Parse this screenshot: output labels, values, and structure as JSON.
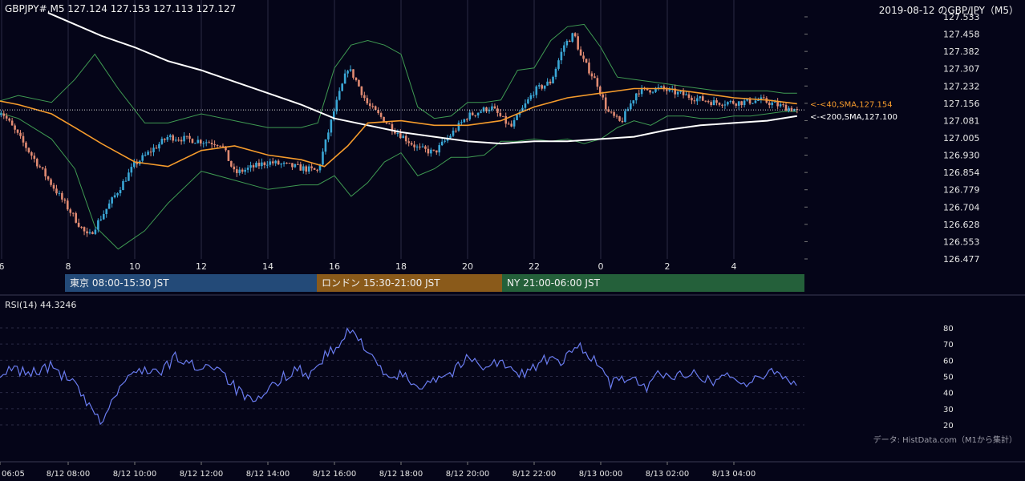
{
  "header": {
    "symbol_info": "GBPJPY#,M5 127.124 127.153 127.113 127.127",
    "title_right": "2019-08-12 のGBP/JPY（M5）"
  },
  "colors": {
    "background": "#050518",
    "grid": "#2a2a44",
    "candle_up": "#3aa7d6",
    "candle_down": "#e08a72",
    "bollinger": "#3f9a52",
    "sma40": "#f59b2c",
    "sma200": "#ffffff",
    "rsi": "#6a7cf0",
    "session_tokyo": "#234a78",
    "session_london": "#8a5a1a",
    "session_ny": "#24603a"
  },
  "sessions": [
    {
      "label": "東京 08:00-15:30 JST"
    },
    {
      "label": "ロンドン 15:30-21:00 JST"
    },
    {
      "label": "NY 21:00-06:00 JST"
    }
  ],
  "rsi": {
    "title": "RSI(14) 44.3246"
  },
  "credit": "データ: HistData.com（M1から集計）",
  "chart_data": [
    {
      "type": "candlestick",
      "name": "price",
      "timeframe": "M5",
      "x_ticks": [
        "6",
        "8",
        "10",
        "12",
        "14",
        "16",
        "18",
        "20",
        "22",
        "0",
        "2",
        "4"
      ],
      "y_ticks": [
        "127.533",
        "127.458",
        "127.382",
        "127.307",
        "127.232",
        "127.156",
        "127.081",
        "127.005",
        "126.930",
        "126.854",
        "126.779",
        "126.704",
        "126.628",
        "126.553",
        "126.477"
      ],
      "ylim": [
        126.477,
        127.533
      ],
      "current_price": 127.127,
      "last_bar": {
        "open": 127.124,
        "high": 127.153,
        "low": 127.113,
        "close": 127.127
      },
      "grid": true,
      "overlays": [
        {
          "name": "SMA 40",
          "label": "<-<40,SMA,127.154",
          "value": 127.154
        },
        {
          "name": "SMA 200",
          "label": "<-<200,SMA,127.100",
          "value": 127.1
        },
        {
          "name": "Bollinger Bands"
        }
      ],
      "anchors": {
        "hours": [
          6,
          8.6,
          10,
          11,
          12.6,
          13,
          14,
          15.5,
          16,
          16.4,
          16.6,
          17,
          17.8,
          18.5,
          19,
          20,
          20.7,
          21.3,
          22,
          22.5,
          22.9,
          23.2,
          23.4,
          23.9,
          24.2,
          24.6,
          25.1,
          25.8,
          26.3,
          26.8,
          27.4,
          28.2,
          28.8,
          29.5,
          29.9
        ],
        "price": [
          127.12,
          126.57,
          126.89,
          127.01,
          126.98,
          126.85,
          126.9,
          126.86,
          127.13,
          127.31,
          127.27,
          127.15,
          127.04,
          126.96,
          126.94,
          127.1,
          127.14,
          127.05,
          127.21,
          127.25,
          127.41,
          127.46,
          127.36,
          127.24,
          127.12,
          127.07,
          127.21,
          127.22,
          127.2,
          127.18,
          127.16,
          127.16,
          127.17,
          127.14,
          127.127
        ]
      },
      "sma40": {
        "hours": [
          5.8,
          6.5,
          7.5,
          8.2,
          9,
          10,
          11,
          12,
          13,
          14,
          15,
          15.7,
          16.4,
          17,
          18,
          19,
          20,
          21,
          22,
          23,
          24,
          25,
          26,
          27,
          28,
          29,
          29.9
        ],
        "values": [
          127.17,
          127.15,
          127.11,
          127.05,
          126.98,
          126.9,
          126.88,
          126.95,
          126.97,
          126.93,
          126.91,
          126.88,
          126.97,
          127.07,
          127.08,
          127.06,
          127.06,
          127.08,
          127.14,
          127.18,
          127.2,
          127.22,
          127.22,
          127.2,
          127.18,
          127.17,
          127.154
        ]
      },
      "sma200": {
        "hours": [
          7.4,
          9,
          10,
          11,
          12,
          13,
          14,
          15,
          16,
          17,
          18,
          19,
          20,
          21,
          22,
          23,
          24,
          25,
          26,
          27,
          28,
          29,
          29.9
        ],
        "values": [
          127.55,
          127.45,
          127.4,
          127.34,
          127.3,
          127.25,
          127.2,
          127.15,
          127.09,
          127.06,
          127.03,
          127.01,
          126.99,
          126.98,
          126.99,
          126.99,
          127.0,
          127.01,
          127.04,
          127.06,
          127.07,
          127.08,
          127.1
        ]
      },
      "bollinger": {
        "hours": [
          5.8,
          6.5,
          7.5,
          8.2,
          8.8,
          9.5,
          10.3,
          11,
          12,
          13,
          14,
          15,
          15.5,
          16,
          16.5,
          17,
          17.5,
          18,
          18.5,
          19,
          19.5,
          20,
          20.5,
          21,
          21.5,
          22,
          22.5,
          23,
          23.5,
          24,
          24.5,
          25,
          25.5,
          26,
          26.5,
          27,
          27.5,
          28,
          28.5,
          29,
          29.5,
          29.9
        ],
        "upper": [
          127.16,
          127.19,
          127.16,
          127.26,
          127.37,
          127.22,
          127.07,
          127.07,
          127.11,
          127.08,
          127.05,
          127.05,
          127.07,
          127.31,
          127.41,
          127.43,
          127.41,
          127.37,
          127.14,
          127.09,
          127.1,
          127.16,
          127.16,
          127.17,
          127.3,
          127.31,
          127.43,
          127.49,
          127.5,
          127.4,
          127.27,
          127.26,
          127.25,
          127.24,
          127.23,
          127.22,
          127.21,
          127.21,
          127.21,
          127.21,
          127.2,
          127.2
        ],
        "lower": [
          127.12,
          127.09,
          127.0,
          126.87,
          126.62,
          126.52,
          126.6,
          126.72,
          126.86,
          126.82,
          126.78,
          126.8,
          126.8,
          126.84,
          126.75,
          126.81,
          126.9,
          126.94,
          126.84,
          126.87,
          126.92,
          126.92,
          126.93,
          126.99,
          126.99,
          127.0,
          126.99,
          127.0,
          126.98,
          127.0,
          127.05,
          127.08,
          127.06,
          127.1,
          127.1,
          127.09,
          127.09,
          127.1,
          127.1,
          127.11,
          127.12,
          127.12
        ]
      }
    },
    {
      "type": "line",
      "name": "RSI(14)",
      "y_ticks": [
        "80",
        "70",
        "60",
        "50",
        "40",
        "30",
        "20"
      ],
      "ylim": [
        15,
        86
      ],
      "current_value": 44.3246,
      "grid": true,
      "hours": [
        5.8,
        6.3,
        6.8,
        7.5,
        8.2,
        8.7,
        9,
        9.6,
        10.2,
        10.8,
        11.2,
        11.8,
        12.5,
        13,
        13.6,
        14.2,
        14.8,
        15.3,
        15.7,
        16.1,
        16.4,
        16.8,
        17.2,
        17.5,
        18,
        18.5,
        19,
        19.5,
        20,
        20.5,
        21,
        21.5,
        22,
        22.4,
        22.8,
        23.1,
        23.4,
        23.9,
        24.3,
        24.8,
        25.3,
        25.8,
        26.3,
        26.8,
        27.3,
        27.8,
        28.3,
        28.8,
        29.2,
        29.5,
        29.9
      ],
      "values": [
        44,
        55,
        52,
        56,
        45,
        28,
        22,
        45,
        55,
        52,
        62,
        56,
        57,
        43,
        32,
        45,
        55,
        51,
        63,
        67,
        78,
        72,
        62,
        48,
        51,
        44,
        49,
        52,
        61,
        57,
        59,
        50,
        56,
        61,
        57,
        65,
        69,
        58,
        45,
        50,
        42,
        53,
        49,
        55,
        46,
        52,
        45,
        48,
        55,
        50,
        44.3
      ]
    }
  ],
  "bottom_axis": {
    "ticks": [
      "06:05",
      "8/12 08:00",
      "8/12 10:00",
      "8/12 12:00",
      "8/12 14:00",
      "8/12 16:00",
      "8/12 18:00",
      "8/12 20:00",
      "8/12 22:00",
      "8/13 00:00",
      "8/13 02:00",
      "8/13 04:00"
    ]
  }
}
